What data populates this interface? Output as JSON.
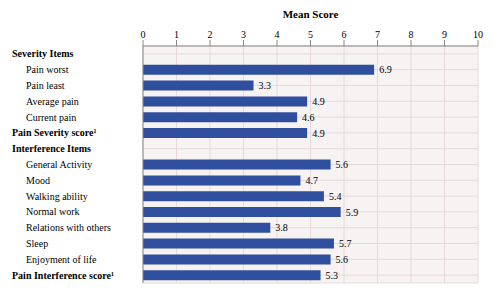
{
  "chart_data": {
    "type": "bar",
    "orientation": "horizontal",
    "x_label": "Mean Score",
    "categories": [
      "Severity Items",
      "Pain worst",
      "Pain least",
      "Average pain",
      "Current pain",
      "Pain Severity score¹",
      "Interference Items",
      "General Activity",
      "Mood",
      "Walking ability",
      "Normal work",
      "Relations with others",
      "Sleep",
      "Enjoyment of life",
      "Pain Interference score¹"
    ],
    "values": [
      null,
      6.9,
      3.3,
      4.9,
      4.6,
      4.9,
      null,
      5.6,
      4.7,
      5.4,
      5.9,
      3.8,
      5.7,
      5.6,
      5.3
    ],
    "color": "#2f4f9e",
    "xlim": [
      0,
      10
    ],
    "xticks": [
      0,
      1,
      2,
      3,
      4,
      5,
      6,
      7,
      8,
      9,
      10
    ],
    "grid": true,
    "data_labels": true
  }
}
